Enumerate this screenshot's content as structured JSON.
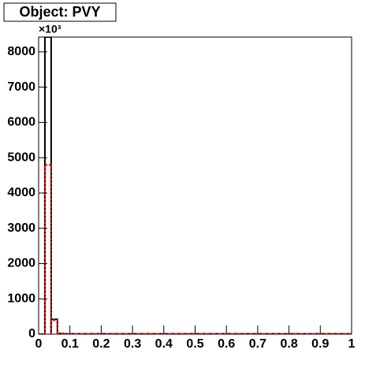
{
  "chart_data": {
    "type": "histogram",
    "title": "Object: PVY",
    "y_multiplier": "×10³",
    "bins": [
      0,
      0.02,
      0.04,
      0.06,
      0.08,
      0.1,
      0.12,
      0.14,
      0.16,
      0.18,
      0.2,
      0.22,
      0.24,
      0.26,
      0.28,
      0.3,
      0.32,
      0.34,
      0.36,
      0.38,
      0.4,
      0.42,
      0.44,
      0.46,
      0.48,
      0.5,
      0.52,
      0.54,
      0.56,
      0.58,
      0.6,
      0.62,
      0.64,
      0.66,
      0.68,
      0.7,
      0.72,
      0.74,
      0.76,
      0.78,
      0.8,
      0.82,
      0.84,
      0.86,
      0.88,
      0.9,
      0.92,
      0.94,
      0.96,
      0.98,
      1
    ],
    "series": [
      {
        "color": "#000000",
        "dash": false,
        "values": [
          0,
          8420,
          420,
          20,
          10,
          10,
          10,
          10,
          10,
          10,
          10,
          10,
          10,
          10,
          10,
          10,
          10,
          10,
          10,
          10,
          10,
          10,
          10,
          10,
          10,
          10,
          10,
          10,
          10,
          10,
          10,
          10,
          10,
          10,
          10,
          10,
          10,
          10,
          10,
          10,
          10,
          10,
          10,
          10,
          10,
          10,
          10,
          10,
          10,
          10
        ]
      },
      {
        "color": "#ff0000",
        "dash": true,
        "values": [
          0,
          4800,
          400,
          20,
          10,
          10,
          10,
          10,
          10,
          10,
          10,
          10,
          10,
          10,
          10,
          10,
          10,
          10,
          10,
          10,
          10,
          10,
          10,
          10,
          10,
          10,
          10,
          10,
          10,
          10,
          10,
          10,
          10,
          10,
          10,
          10,
          10,
          10,
          10,
          10,
          10,
          10,
          10,
          10,
          10,
          10,
          10,
          10,
          10,
          10
        ]
      }
    ],
    "xlim": [
      0,
      1
    ],
    "xticks": [
      0,
      0.1,
      0.2,
      0.3,
      0.4,
      0.5,
      0.6,
      0.7,
      0.8,
      0.9,
      1
    ],
    "ylim": [
      0,
      8420
    ],
    "yticks": [
      0,
      1000,
      2000,
      3000,
      4000,
      5000,
      6000,
      7000,
      8000
    ]
  }
}
